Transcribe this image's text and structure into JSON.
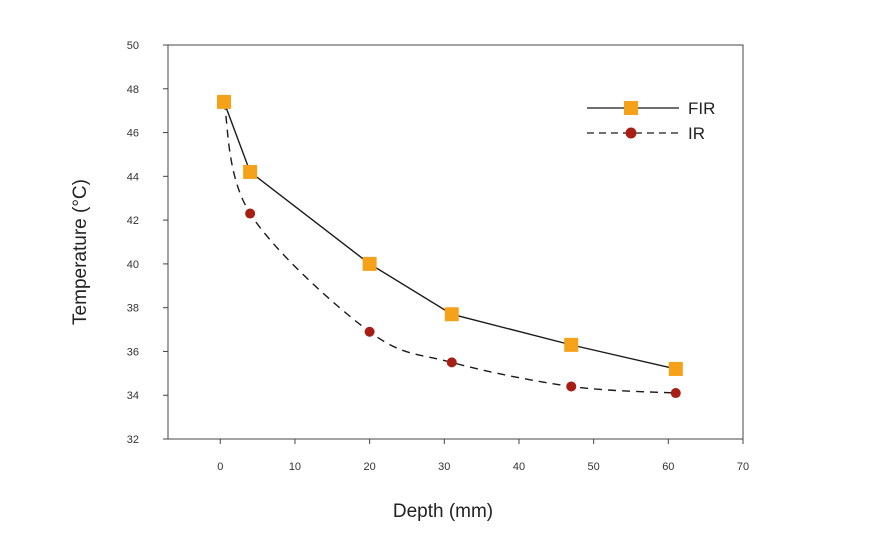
{
  "chart_data": {
    "type": "line",
    "xlabel": "Depth (mm)",
    "ylabel": "Temperature (°C)",
    "xlim": [
      -7,
      70
    ],
    "ylim": [
      32,
      50
    ],
    "x_ticks": [
      0,
      10,
      20,
      30,
      40,
      50,
      60,
      70
    ],
    "y_ticks": [
      32,
      34,
      36,
      38,
      40,
      42,
      44,
      46,
      48,
      50
    ],
    "grid": false,
    "legend_position": "top-right",
    "series": [
      {
        "name": "FIR",
        "style": "solid",
        "marker": "square",
        "line_color": "#1a1a1a",
        "marker_color": "#f5a21a",
        "x": [
          0.5,
          4,
          20,
          31,
          47,
          61
        ],
        "y": [
          47.4,
          44.2,
          40.0,
          37.7,
          36.3,
          35.2
        ]
      },
      {
        "name": "IR",
        "style": "dashed",
        "marker": "circle",
        "line_color": "#1a1a1a",
        "marker_color": "#a61e14",
        "x": [
          0.5,
          4,
          20,
          31,
          47,
          61
        ],
        "y": [
          47.4,
          42.3,
          36.9,
          35.5,
          34.4,
          34.1
        ]
      }
    ]
  }
}
